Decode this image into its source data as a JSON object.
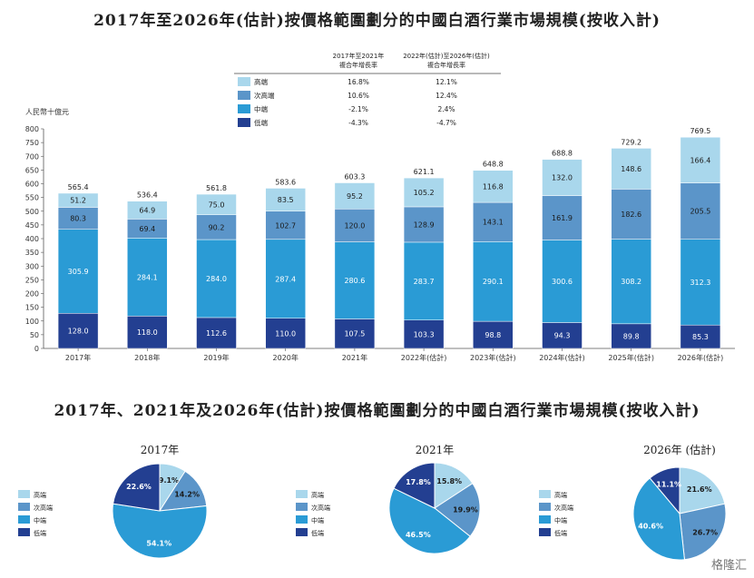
{
  "title_bar": "2017年至2026年(估計)按價格範圍劃分的中國白酒行業市場規模(按收入計)",
  "title_pie": "2017年、2021年及2026年(估計)按價格範圍劃分的中國白酒行業市場規模(按收入計)",
  "watermark": "格隆汇",
  "colors": {
    "high": "#a9d7ec",
    "sub_high": "#5b95c9",
    "mid": "#2a9bd5",
    "low": "#233f91"
  },
  "chart_data": [
    {
      "type": "bar",
      "stacked": true,
      "ylabel": "人民幣十億元",
      "ylim": [
        0,
        800
      ],
      "yticks": [
        0,
        50,
        100,
        150,
        200,
        250,
        300,
        350,
        400,
        450,
        500,
        550,
        600,
        650,
        700,
        750,
        800
      ],
      "categories": [
        "2017年",
        "2018年",
        "2019年",
        "2020年",
        "2021年",
        "2022年(估計)",
        "2023年(估計)",
        "2024年(估計)",
        "2025年(估計)",
        "2026年(估計)"
      ],
      "totals": [
        "565.4",
        "536.4",
        "561.8",
        "583.6",
        "603.3",
        "621.1",
        "648.8",
        "688.8",
        "729.2",
        "769.5"
      ],
      "series": [
        {
          "name": "低端",
          "key": "low",
          "values": [
            128.0,
            118.0,
            112.6,
            110.0,
            107.5,
            103.3,
            98.8,
            94.3,
            89.8,
            85.3
          ],
          "labels": [
            "128.0",
            "118.0",
            "112.6",
            "110.0",
            "107.5",
            "103.3",
            "98.8",
            "94.3",
            "89.8",
            "85.3"
          ]
        },
        {
          "name": "中端",
          "key": "mid",
          "values": [
            305.9,
            284.1,
            284.0,
            287.4,
            280.6,
            283.7,
            290.1,
            300.6,
            308.2,
            312.3
          ],
          "labels": [
            "305.9",
            "284.1",
            "284.0",
            "287.4",
            "280.6",
            "283.7",
            "290.1",
            "300.6",
            "308.2",
            "312.3"
          ]
        },
        {
          "name": "次高端",
          "key": "sub_high",
          "values": [
            80.3,
            69.4,
            90.2,
            102.7,
            120.0,
            128.9,
            143.1,
            161.9,
            182.6,
            205.5
          ],
          "labels": [
            "80.3",
            "69.4",
            "90.2",
            "102.7",
            "120.0",
            "128.9",
            "143.1",
            "161.9",
            "182.6",
            "205.5"
          ]
        },
        {
          "name": "高端",
          "key": "high",
          "values": [
            51.2,
            64.9,
            75.0,
            83.5,
            95.2,
            105.2,
            116.8,
            132.0,
            148.6,
            166.4
          ],
          "labels": [
            "51.2",
            "64.9",
            "75.0",
            "83.5",
            "95.2",
            "105.2",
            "116.8",
            "132.0",
            "148.6",
            "166.4"
          ]
        }
      ],
      "legend_table": {
        "headers": [
          "2017年至2021年\n複合年增長率",
          "2022年(估計)至2026年(估計)\n複合年增長率"
        ],
        "rows": [
          {
            "name": "高端",
            "key": "high",
            "cagr1": "16.8%",
            "cagr2": "12.1%"
          },
          {
            "name": "次高端",
            "key": "sub_high",
            "cagr1": "10.6%",
            "cagr2": "12.4%"
          },
          {
            "name": "中端",
            "key": "mid",
            "cagr1": "-2.1%",
            "cagr2": "2.4%"
          },
          {
            "name": "低端",
            "key": "low",
            "cagr1": "-4.3%",
            "cagr2": "-4.7%"
          }
        ]
      }
    },
    {
      "type": "pie",
      "title": "2017年",
      "legend": [
        {
          "name": "高端",
          "key": "high"
        },
        {
          "name": "次高端",
          "key": "sub_high"
        },
        {
          "name": "中端",
          "key": "mid"
        },
        {
          "name": "低端",
          "key": "low"
        }
      ],
      "slices": [
        {
          "name": "高端",
          "key": "high",
          "value": 9.1,
          "label": "9.1%"
        },
        {
          "name": "次高端",
          "key": "sub_high",
          "value": 14.2,
          "label": "14.2%"
        },
        {
          "name": "中端",
          "key": "mid",
          "value": 54.1,
          "label": "54.1%"
        },
        {
          "name": "低端",
          "key": "low",
          "value": 22.6,
          "label": "22.6%"
        }
      ]
    },
    {
      "type": "pie",
      "title": "2021年",
      "legend": [
        {
          "name": "高端",
          "key": "high"
        },
        {
          "name": "次高端",
          "key": "sub_high"
        },
        {
          "name": "中端",
          "key": "mid"
        },
        {
          "name": "低端",
          "key": "low"
        }
      ],
      "slices": [
        {
          "name": "高端",
          "key": "high",
          "value": 15.8,
          "label": "15.8%"
        },
        {
          "name": "次高端",
          "key": "sub_high",
          "value": 19.9,
          "label": "19.9%"
        },
        {
          "name": "中端",
          "key": "mid",
          "value": 46.5,
          "label": "46.5%"
        },
        {
          "name": "低端",
          "key": "low",
          "value": 17.8,
          "label": "17.8%"
        }
      ]
    },
    {
      "type": "pie",
      "title": "2026年 (估計)",
      "legend": [
        {
          "name": "高端",
          "key": "high"
        },
        {
          "name": "次高端",
          "key": "sub_high"
        },
        {
          "name": "中端",
          "key": "mid"
        },
        {
          "name": "低端",
          "key": "low"
        }
      ],
      "slices": [
        {
          "name": "高端",
          "key": "high",
          "value": 21.6,
          "label": "21.6%"
        },
        {
          "name": "次高端",
          "key": "sub_high",
          "value": 26.7,
          "label": "26.7%"
        },
        {
          "name": "中端",
          "key": "mid",
          "value": 40.6,
          "label": "40.6%"
        },
        {
          "name": "低端",
          "key": "low",
          "value": 11.1,
          "label": "11.1%"
        }
      ]
    }
  ]
}
